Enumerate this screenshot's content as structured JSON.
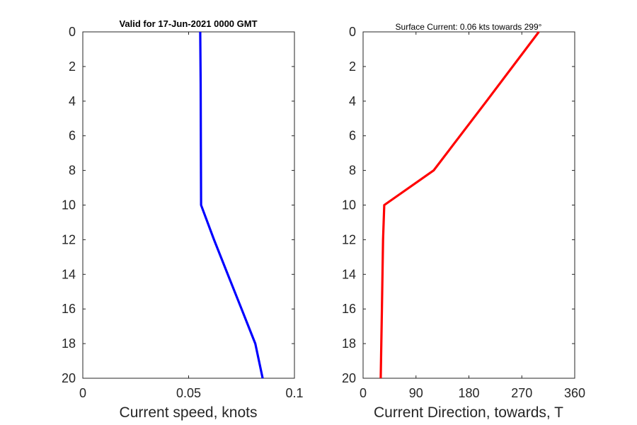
{
  "chart_data": [
    {
      "type": "line",
      "title": "Valid for 17-Jun-2021 0000 GMT",
      "xlabel": "Current speed, knots",
      "ylabel": "",
      "xlim": [
        0,
        0.1
      ],
      "ylim": [
        0,
        20
      ],
      "y_reversed": true,
      "grid": false,
      "xticks": [
        "0",
        "0.05",
        "0.1"
      ],
      "yticks": [
        "0",
        "2",
        "4",
        "6",
        "8",
        "10",
        "12",
        "14",
        "16",
        "18",
        "20"
      ],
      "series": [
        {
          "color": "#0000ff",
          "points": [
            {
              "x": 0.0555,
              "y": 0
            },
            {
              "x": 0.0557,
              "y": 3
            },
            {
              "x": 0.0558,
              "y": 6.5
            },
            {
              "x": 0.0559,
              "y": 10
            },
            {
              "x": 0.062,
              "y": 12
            },
            {
              "x": 0.0685,
              "y": 14
            },
            {
              "x": 0.075,
              "y": 16
            },
            {
              "x": 0.0815,
              "y": 18
            },
            {
              "x": 0.085,
              "y": 20
            }
          ]
        }
      ]
    },
    {
      "type": "line",
      "title": "Surface Current: 0.06 kts towards 299°",
      "xlabel": "Current Direction, towards, T",
      "ylabel": "",
      "xlim": [
        0,
        360
      ],
      "ylim": [
        0,
        20
      ],
      "y_reversed": true,
      "grid": false,
      "xticks": [
        "0",
        "90",
        "180",
        "270",
        "360"
      ],
      "yticks": [
        "0",
        "2",
        "4",
        "6",
        "8",
        "10",
        "12",
        "14",
        "16",
        "18",
        "20"
      ],
      "series": [
        {
          "color": "#ff0000",
          "points": [
            {
              "x": 299,
              "y": 0
            },
            {
              "x": 210,
              "y": 4
            },
            {
              "x": 120,
              "y": 8
            },
            {
              "x": 36,
              "y": 10
            },
            {
              "x": 34,
              "y": 12
            },
            {
              "x": 32,
              "y": 16
            },
            {
              "x": 30,
              "y": 20
            }
          ]
        }
      ]
    }
  ]
}
